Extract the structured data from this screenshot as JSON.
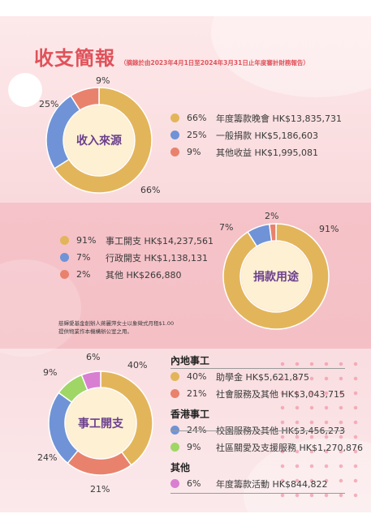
{
  "header": {
    "title": "收支簡報",
    "subtitle": "（摘錄於由2023年4月1日至2024年3月31日止年度審計財務報告）"
  },
  "income": {
    "center_label": "收入來源",
    "items": [
      {
        "percent": "66%",
        "label": "年度籌款晚會 HK$13,835,731",
        "value": 66,
        "color": "#e3b55a"
      },
      {
        "percent": "25%",
        "label": "一般捐款 HK$5,186,603",
        "value": 25,
        "color": "#6f93d6"
      },
      {
        "percent": "9%",
        "label": "其他收益 HK$1,995,081",
        "value": 9,
        "color": "#e9826d"
      }
    ]
  },
  "donation_use": {
    "center_label": "捐款用途",
    "items": [
      {
        "percent": "91%",
        "label": "事工開支 HK$14,237,561",
        "value": 91,
        "color": "#e3b55a"
      },
      {
        "percent": "7%",
        "label": "行政開支 HK$1,138,131",
        "value": 7,
        "color": "#6f93d6"
      },
      {
        "percent": "2%",
        "label": "其他 HK$266,880",
        "value": 2,
        "color": "#e9826d"
      }
    ],
    "note_line1": "慈輝愛基金創辦人蔣麗萍女士以象徵式月租$1.00",
    "note_line2": "提供物業作本機構辦公室之用。"
  },
  "ministry_expense": {
    "center_label": "事工開支",
    "groups": [
      {
        "title": "內地事工",
        "items": [
          {
            "percent": "40%",
            "label": "助學金 HK$5,621,875",
            "value": 40,
            "color": "#e3b55a"
          },
          {
            "percent": "21%",
            "label": "社會服務及其他 HK$3,043,715",
            "value": 21,
            "color": "#e9826d"
          }
        ]
      },
      {
        "title": "香港事工",
        "items": [
          {
            "percent": "24%",
            "label": "校園服務及其他 HK$3,456,273",
            "value": 24,
            "color": "#6f93d6"
          },
          {
            "percent": "9%",
            "label": "社區關愛及支援服務 HK$1,270,876",
            "value": 9,
            "color": "#9fd665"
          }
        ]
      },
      {
        "title": "其他",
        "items": [
          {
            "percent": "6%",
            "label": "年度籌款活動 HK$844,822",
            "value": 6,
            "color": "#d97fd1"
          }
        ]
      }
    ]
  },
  "colors": {
    "accent": "#e0525a",
    "center_text": "#6b3f8e",
    "center_fill": "#fdf0d3"
  }
}
